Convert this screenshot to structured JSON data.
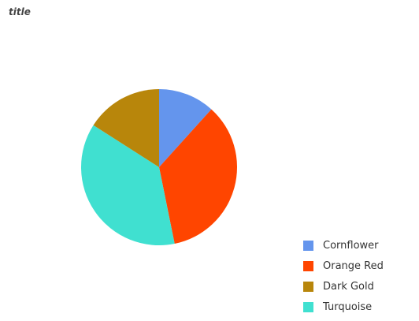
{
  "chart_data": {
    "type": "pie",
    "title": "title",
    "categories": [
      "Cornflower",
      "Orange Red",
      "Dark Gold",
      "Turquoise"
    ],
    "values": [
      11,
      33,
      15,
      35
    ],
    "colors": [
      "#6495ed",
      "#ff4500",
      "#b8860b",
      "#40e0d0"
    ],
    "legend_placement": "bottom-right"
  }
}
